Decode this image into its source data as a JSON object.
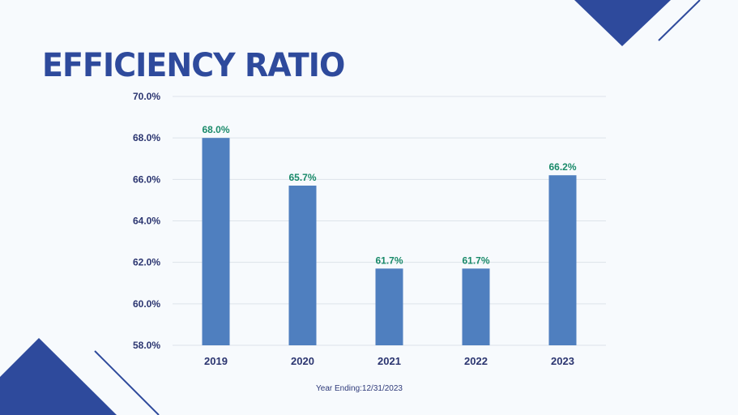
{
  "title": "EFFICIENCY RATIO",
  "footnote": "Year Ending:12/31/2023",
  "colors": {
    "accent": "#2e4a9c",
    "bar": "#4f7fbf",
    "data_label": "#1a8a6a",
    "axis_text": "#2b3570",
    "grid": "#dde3ea"
  },
  "chart_data": {
    "type": "bar",
    "title": "",
    "xlabel": "",
    "ylabel": "",
    "categories": [
      "2019",
      "2020",
      "2021",
      "2022",
      "2023"
    ],
    "values": [
      68.0,
      65.7,
      61.7,
      61.7,
      66.2
    ],
    "data_labels": [
      "68.0%",
      "65.7%",
      "61.7%",
      "61.7%",
      "66.2%"
    ],
    "ylim": [
      58.0,
      70.0
    ],
    "yticks": [
      58.0,
      60.0,
      62.0,
      64.0,
      66.0,
      68.0,
      70.0
    ],
    "ytick_labels": [
      "58.0%",
      "60.0%",
      "62.0%",
      "64.0%",
      "66.0%",
      "68.0%",
      "70.0%"
    ],
    "grid": true,
    "legend": "none"
  }
}
